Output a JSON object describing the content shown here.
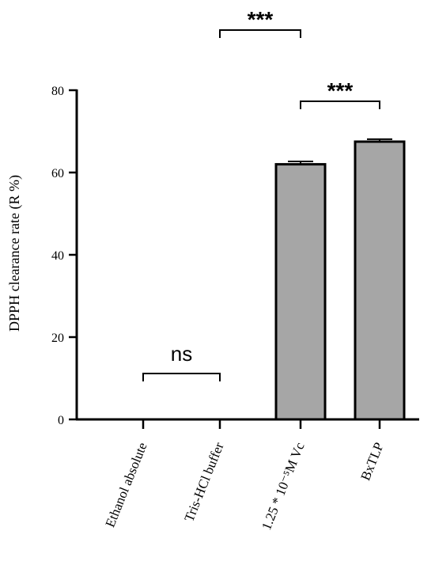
{
  "chart_data": {
    "type": "bar",
    "title": "",
    "xlabel": "",
    "ylabel": "DPPH clearance rate (R %)",
    "categories": [
      "Ethanol absolute",
      "Tris-HCl buffer",
      "1.25 * 10⁻⁵M Vc",
      "BxTLP"
    ],
    "values": [
      0,
      0,
      62,
      67.5
    ],
    "errors": [
      0,
      0,
      0.7,
      0.6
    ],
    "ylim": [
      0,
      80
    ],
    "yticks": [
      0,
      20,
      40,
      60,
      80
    ],
    "bar_color": "#a6a6a6",
    "grid": false,
    "legend": "none",
    "annotations": [
      {
        "text": "***",
        "from": 1,
        "to": 2
      },
      {
        "text": "***",
        "from": 2,
        "to": 3
      },
      {
        "text": "ns",
        "from": 0,
        "to": 1
      }
    ]
  }
}
